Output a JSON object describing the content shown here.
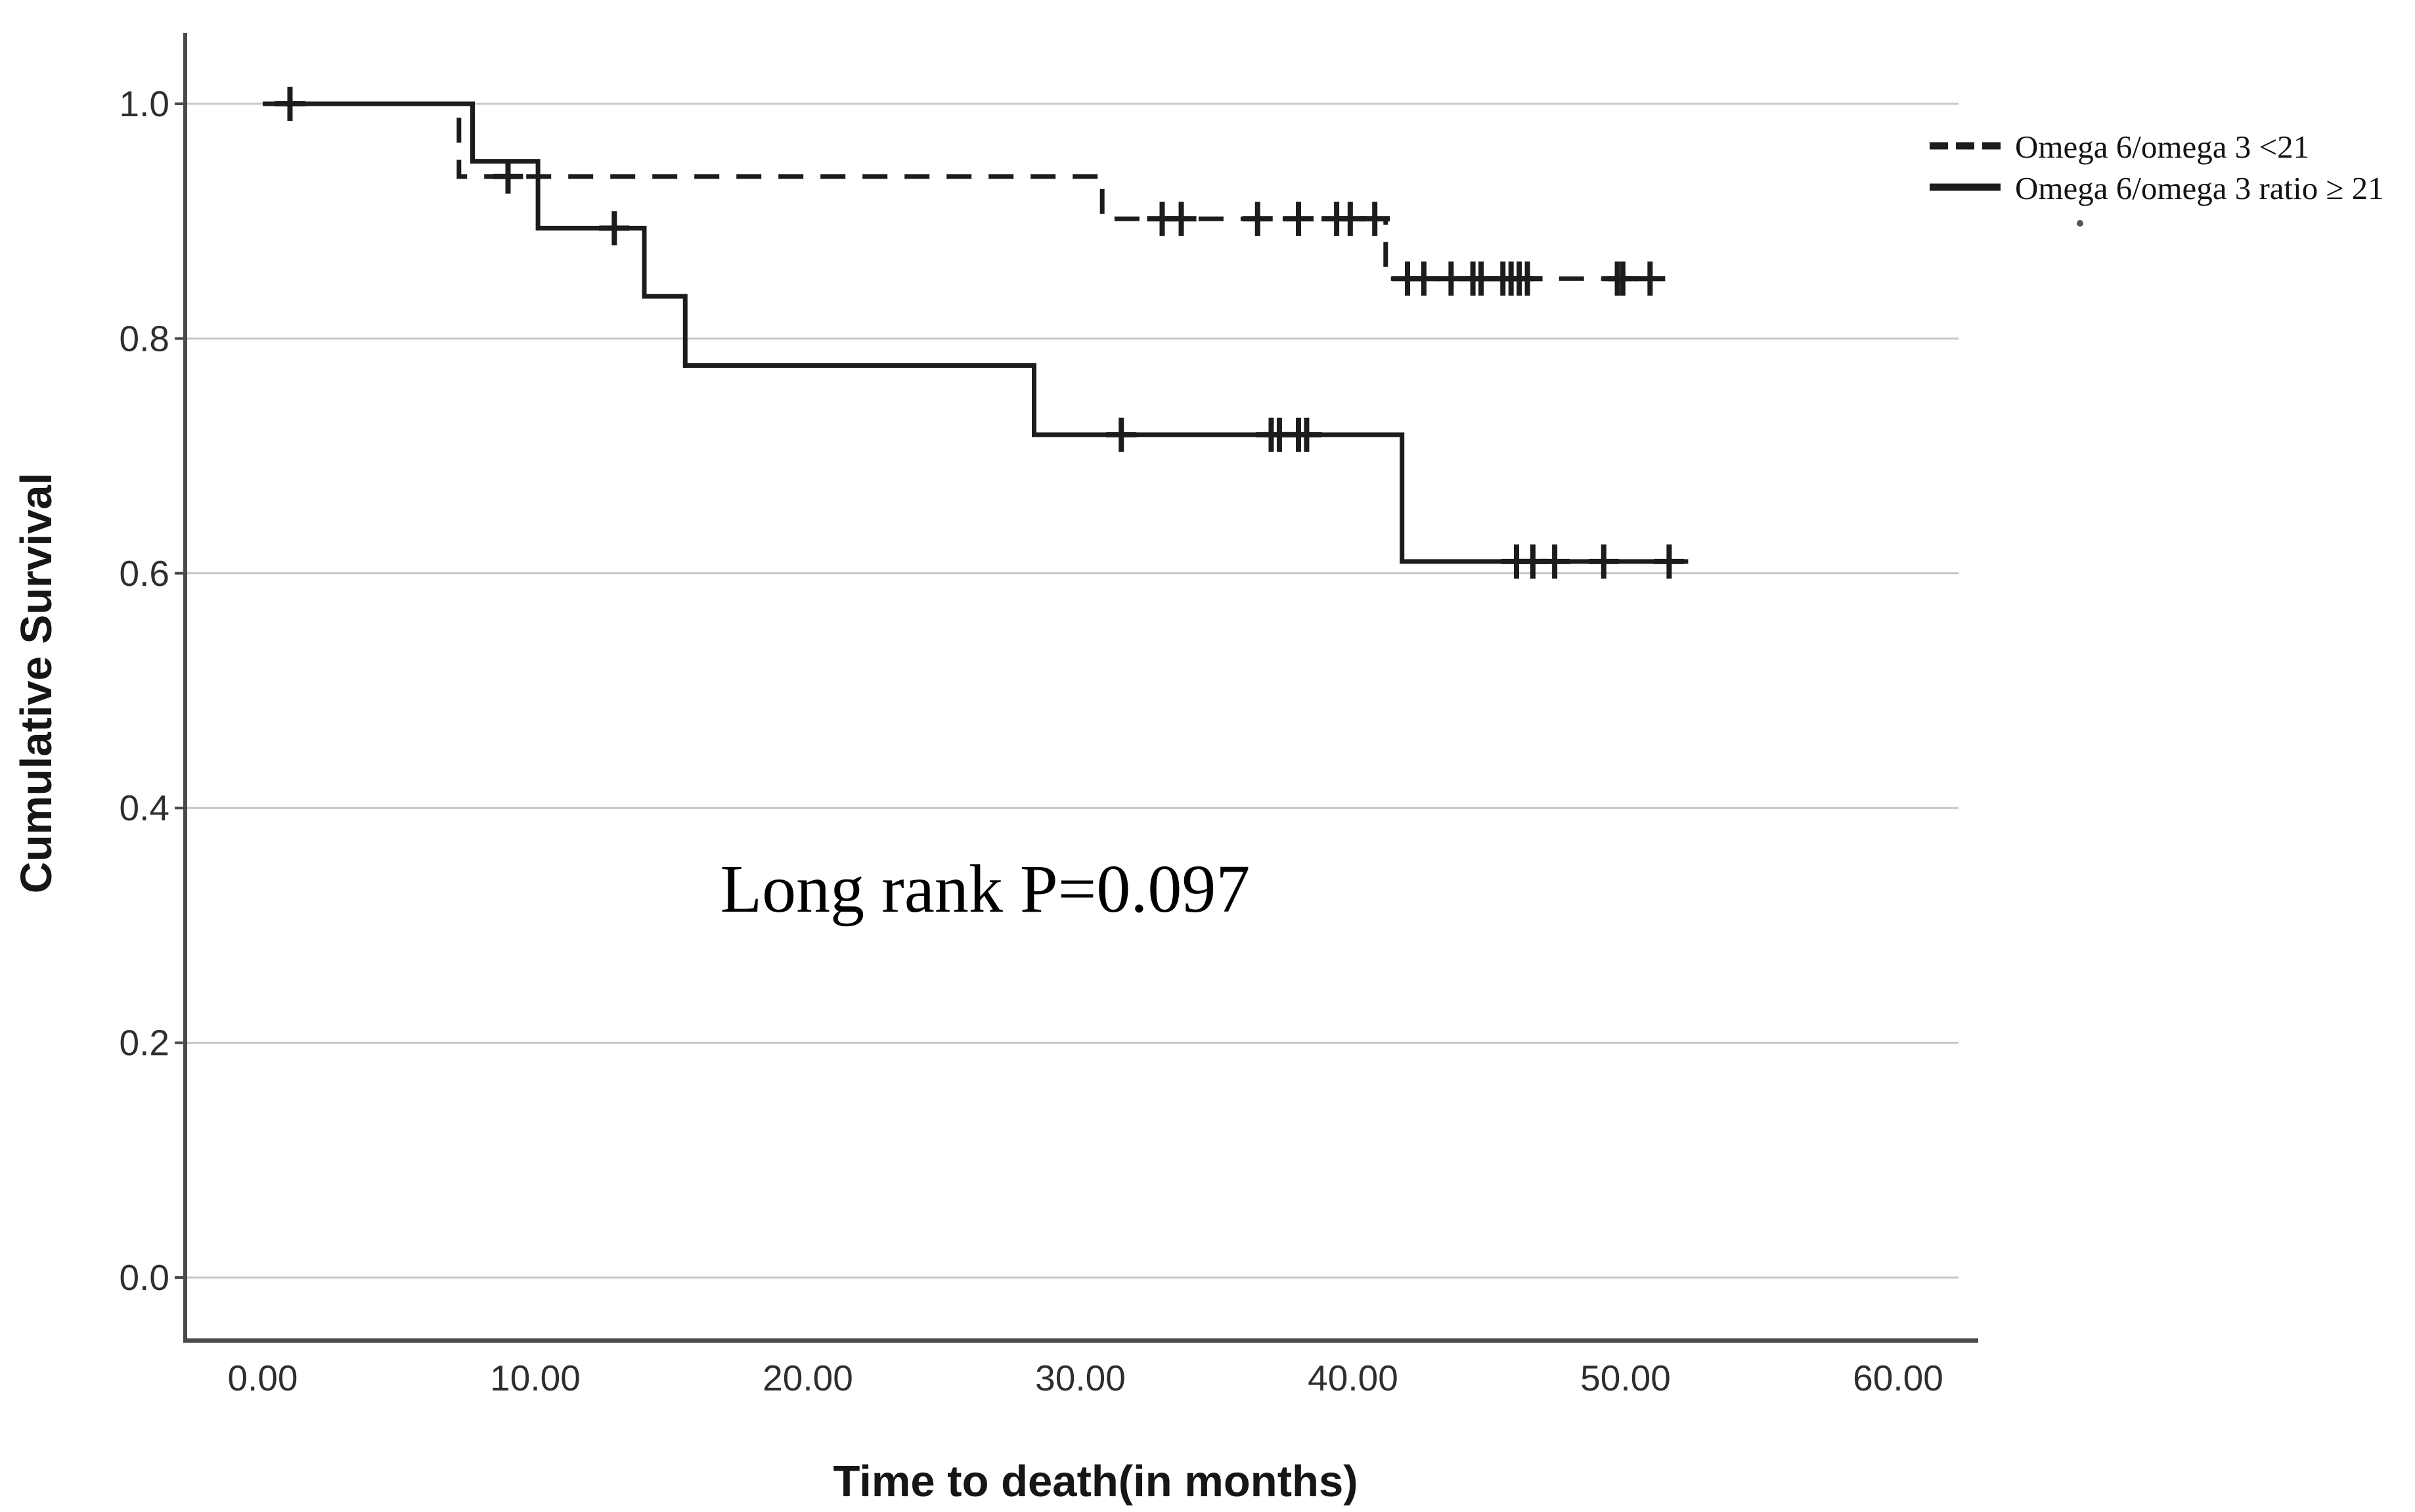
{
  "figure": {
    "background": "#ffffff",
    "annotation": {
      "text": "Long rank P=0.097"
    }
  },
  "chart_data": {
    "type": "line",
    "subtype": "kaplan-meier-step",
    "title": "",
    "xlabel": "Time to death(in months)",
    "ylabel": "Cumulative Survival",
    "xlim": [
      0,
      62.3
    ],
    "ylim": [
      -0.055,
      1.055
    ],
    "grid": "horizontal",
    "legend_position": "top-right-outside",
    "x_ticks": [
      {
        "value": 0,
        "label": "0.00"
      },
      {
        "value": 10,
        "label": "10.00"
      },
      {
        "value": 20,
        "label": "20.00"
      },
      {
        "value": 30,
        "label": "30.00"
      },
      {
        "value": 40,
        "label": "40.00"
      },
      {
        "value": 50,
        "label": "50.00"
      },
      {
        "value": 60,
        "label": "60.00"
      }
    ],
    "y_ticks": [
      {
        "value": 1.0,
        "label": "1.0"
      },
      {
        "value": 0.8,
        "label": "0.8"
      },
      {
        "value": 0.6,
        "label": "0.6"
      },
      {
        "value": 0.4,
        "label": "0.4"
      },
      {
        "value": 0.2,
        "label": "0.2"
      },
      {
        "value": 0.0,
        "label": "0.0"
      }
    ],
    "legend": {
      "items": [
        {
          "label": "Omega 6/omega 3 <21",
          "line_style": "dashed"
        },
        {
          "label": "Omega 6/omega 3 ratio ≥ 21",
          "line_style": "solid"
        }
      ]
    },
    "series": [
      {
        "name": "Omega 6/omega 3 <21",
        "line_style": "dashed",
        "color": "#1c1c1c",
        "points": [
          [
            0,
            1.0
          ],
          [
            7.2,
            1.0
          ],
          [
            7.2,
            0.938
          ],
          [
            30.8,
            0.938
          ],
          [
            30.8,
            0.902
          ],
          [
            41.2,
            0.902
          ],
          [
            41.2,
            0.851
          ],
          [
            51.4,
            0.851
          ]
        ],
        "censored": [
          [
            9.0,
            0.938
          ],
          [
            33.0,
            0.902
          ],
          [
            33.7,
            0.902
          ],
          [
            36.5,
            0.902
          ],
          [
            38.0,
            0.902
          ],
          [
            39.4,
            0.902
          ],
          [
            39.9,
            0.902
          ],
          [
            40.8,
            0.902
          ],
          [
            42.0,
            0.851
          ],
          [
            42.6,
            0.851
          ],
          [
            43.6,
            0.851
          ],
          [
            44.4,
            0.851
          ],
          [
            44.7,
            0.851
          ],
          [
            45.5,
            0.851
          ],
          [
            45.8,
            0.851
          ],
          [
            46.1,
            0.851
          ],
          [
            46.4,
            0.851
          ],
          [
            49.7,
            0.851
          ],
          [
            49.9,
            0.851
          ],
          [
            50.9,
            0.851
          ]
        ]
      },
      {
        "name": "Omega 6/omega 3 ratio ≥ 21",
        "line_style": "solid",
        "color": "#1c1c1c",
        "points": [
          [
            0,
            1.0
          ],
          [
            7.7,
            1.0
          ],
          [
            7.7,
            0.951
          ],
          [
            10.1,
            0.951
          ],
          [
            10.1,
            0.894
          ],
          [
            14.0,
            0.894
          ],
          [
            14.0,
            0.836
          ],
          [
            15.5,
            0.836
          ],
          [
            15.5,
            0.777
          ],
          [
            28.3,
            0.777
          ],
          [
            28.3,
            0.718
          ],
          [
            41.8,
            0.718
          ],
          [
            41.8,
            0.61
          ],
          [
            52.3,
            0.61
          ]
        ],
        "censored": [
          [
            1.0,
            1.0
          ],
          [
            12.9,
            0.894
          ],
          [
            31.5,
            0.718
          ],
          [
            37.0,
            0.718
          ],
          [
            37.3,
            0.718
          ],
          [
            38.0,
            0.718
          ],
          [
            38.3,
            0.718
          ],
          [
            46.0,
            0.61
          ],
          [
            46.6,
            0.61
          ],
          [
            47.4,
            0.61
          ],
          [
            49.2,
            0.61
          ],
          [
            51.6,
            0.61
          ]
        ]
      }
    ],
    "colors": {
      "curve": "#1c1c1c",
      "grid": "#c7c7c7",
      "axis": "#4a4a4a",
      "tick_text": "#2e2e2e",
      "title_text": "#161616"
    }
  }
}
